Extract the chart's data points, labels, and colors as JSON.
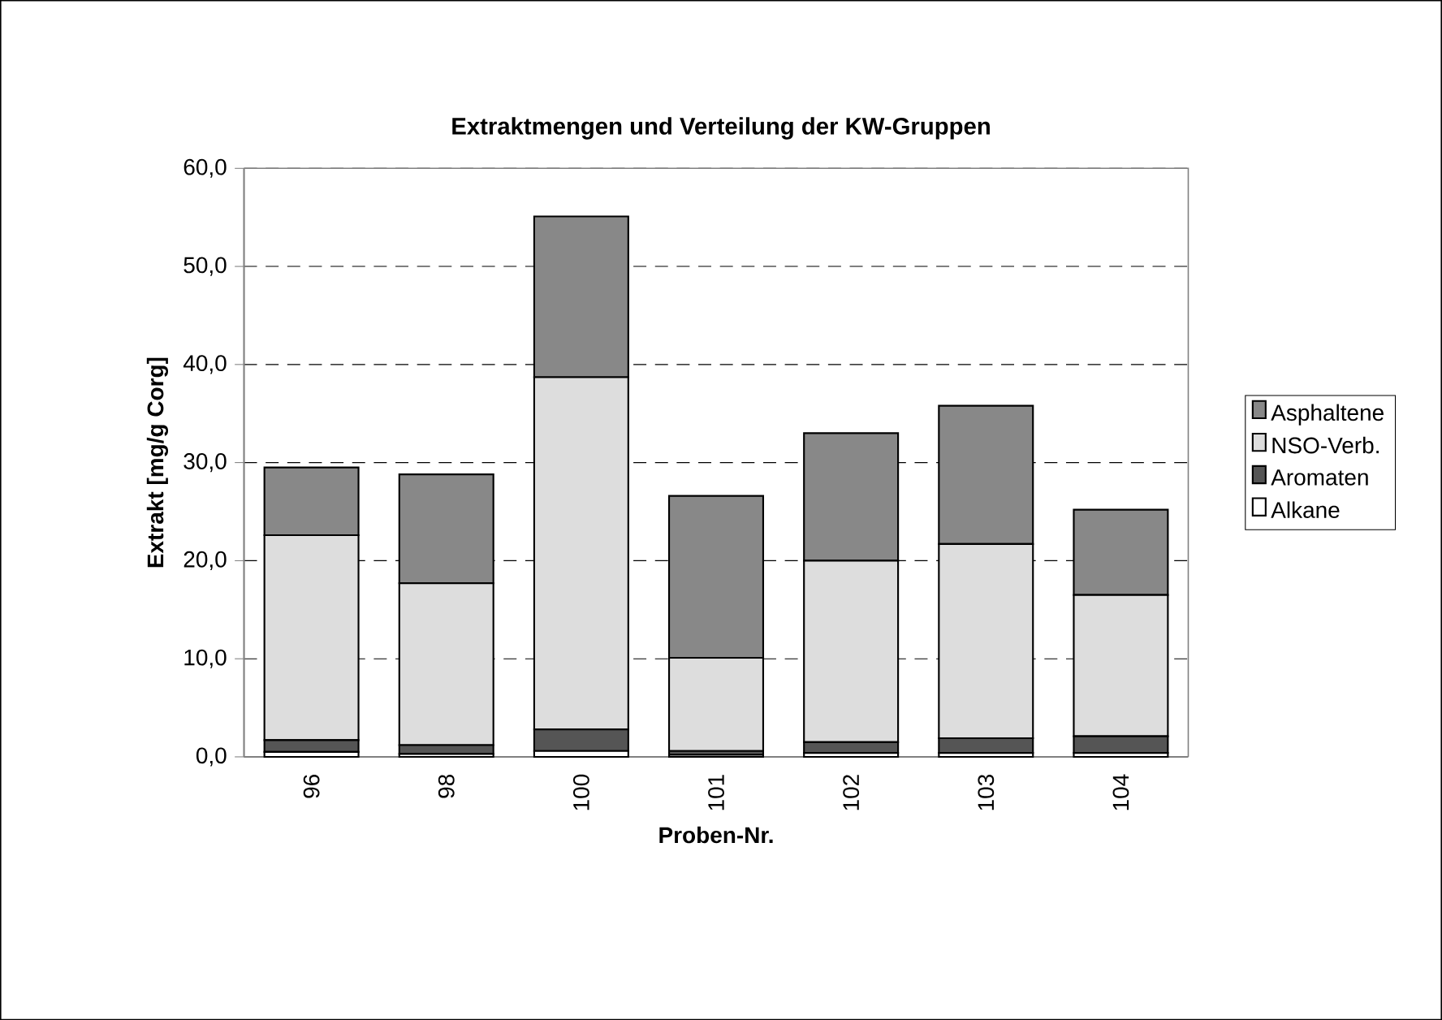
{
  "chart_data": {
    "type": "bar",
    "stacked": true,
    "title": "Extraktmengen und Verteilung der KW-Gruppen",
    "xlabel": "Proben-Nr.",
    "ylabel": "Extrakt [mg/g Corg]",
    "categories": [
      "96",
      "98",
      "100",
      "101",
      "102",
      "103",
      "104"
    ],
    "series": [
      {
        "name": "Alkane",
        "color": "#ffffff",
        "values": [
          0.5,
          0.3,
          0.6,
          0.2,
          0.4,
          0.4,
          0.4
        ]
      },
      {
        "name": "Aromaten",
        "color": "#555555",
        "values": [
          1.2,
          0.9,
          2.2,
          0.4,
          1.1,
          1.5,
          1.7
        ]
      },
      {
        "name": "NSO-Verb.",
        "color": "#dddddd",
        "values": [
          20.9,
          16.5,
          35.9,
          9.5,
          18.5,
          19.8,
          14.4
        ]
      },
      {
        "name": "Asphaltene",
        "color": "#888888",
        "values": [
          6.9,
          11.1,
          16.4,
          16.5,
          13.0,
          14.1,
          8.7
        ]
      }
    ],
    "ylim": [
      0,
      60
    ],
    "yticks": [
      {
        "value": 0,
        "label": "0,0"
      },
      {
        "value": 10,
        "label": "10,0"
      },
      {
        "value": 20,
        "label": "20,0"
      },
      {
        "value": 30,
        "label": "30,0"
      },
      {
        "value": 40,
        "label": "40,0"
      },
      {
        "value": 50,
        "label": "50,0"
      },
      {
        "value": 60,
        "label": "60,0"
      }
    ],
    "grid": "y",
    "legend": "right"
  }
}
